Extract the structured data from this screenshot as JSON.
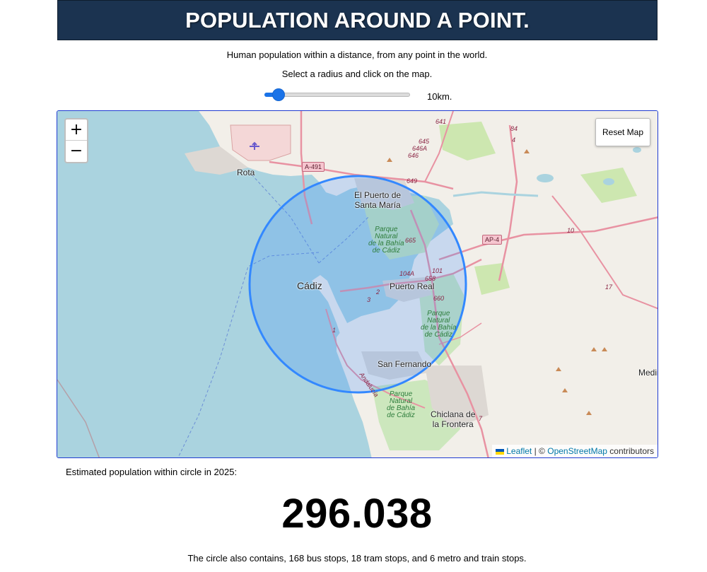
{
  "header": {
    "title": "POPULATION AROUND A POINT."
  },
  "intro": {
    "line1": "Human population within a distance, from any point in the world.",
    "line2": "Select a radius and click on the map."
  },
  "radius_slider": {
    "value_label": "10km.",
    "fraction": 0.1
  },
  "map": {
    "zoom_in_label": "+",
    "zoom_out_label": "−",
    "reset_label": "Reset Map",
    "attribution": {
      "leaflet": "Leaflet",
      "separator": "| ©",
      "osm": "OpenStreetMap",
      "suffix": "contributors"
    },
    "labels": {
      "rota": "Rota",
      "puerto_santa_maria": "El Puerto de\nSanta María",
      "cadiz": "Cádiz",
      "puerto_real": "Puerto Real",
      "san_fernando": "San Fernando",
      "chiclana": "Chiclana de\nla Frontera",
      "medina": "Medir",
      "park1": "Parque\nNatural\nde la Bahía\nde Cádiz",
      "park2": "Parque\nNatural\nde la Bahía\nde Cádiz",
      "park3": "Parque\nNatural\nde Bahía\nde Cádiz",
      "andalucia": "Andalucía"
    },
    "road_shields": [
      "A-491",
      "AP-4"
    ],
    "road_numbers": [
      "641",
      "645",
      "646A",
      "646",
      "649",
      "665",
      "104A",
      "101",
      "658",
      "660",
      "84",
      "4",
      "10",
      "17",
      "2",
      "3",
      "1",
      "7"
    ],
    "colors": {
      "water": "#aad3df",
      "land": "#f2efe9",
      "park": "#c8e6b8",
      "circle": "#3388ff",
      "road": "#e892a2"
    }
  },
  "result": {
    "label": "Estimated population within circle in 2025:",
    "population": "296.038",
    "stops_text": "The circle also contains, 168 bus stops, 18 tram stops, and 6 metro and train stops."
  }
}
